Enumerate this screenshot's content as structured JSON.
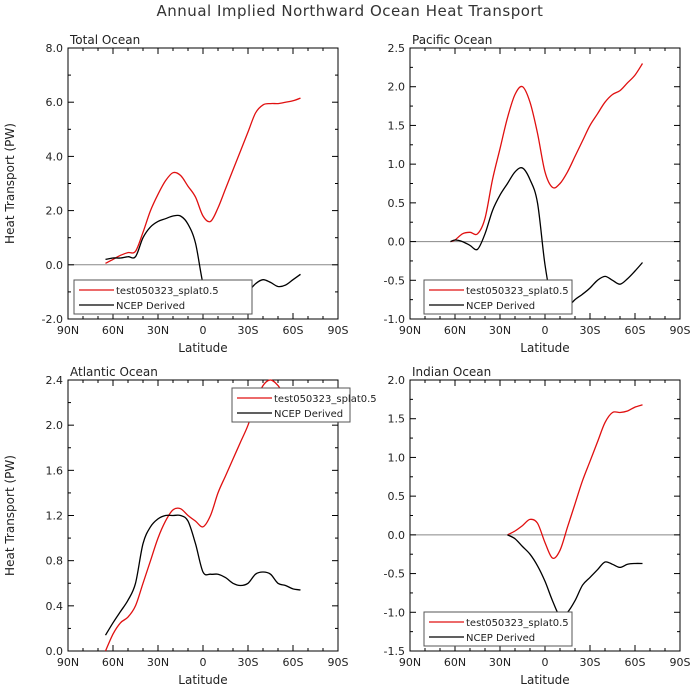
{
  "title": "Annual Implied Northward Ocean Heat Transport",
  "colors": {
    "model": "#e01010",
    "ncep": "#000000",
    "zero_line": "#888888"
  },
  "legend": [
    "test050323_splat0.5",
    "NCEP Derived"
  ],
  "chart_data": [
    {
      "type": "line",
      "title": "Total Ocean",
      "xlabel": "Latitude",
      "ylabel": "Heat Transport (PW)",
      "xlim": [
        90,
        -90
      ],
      "ylim": [
        -2.0,
        8.0
      ],
      "x_ticks": [
        90,
        60,
        30,
        0,
        -30,
        -60,
        -90
      ],
      "x_tick_labels": [
        "90N",
        "60N",
        "30N",
        "0",
        "30S",
        "60S",
        "90S"
      ],
      "y_ticks": [
        -2.0,
        0.0,
        2.0,
        4.0,
        6.0,
        8.0
      ],
      "y_tick_labels": [
        "-2.0",
        "0.0",
        "2.0",
        "4.0",
        "6.0",
        "8.0"
      ],
      "zero_line": true,
      "legend_position": "bottom-left",
      "series": [
        {
          "name": "test050323_splat0.5",
          "x": [
            65,
            60,
            55,
            50,
            45,
            40,
            35,
            30,
            25,
            20,
            15,
            10,
            5,
            0,
            -5,
            -10,
            -15,
            -20,
            -25,
            -30,
            -35,
            -40,
            -45,
            -50,
            -55,
            -60,
            -65
          ],
          "y": [
            0.05,
            0.2,
            0.35,
            0.45,
            0.5,
            1.2,
            2.0,
            2.6,
            3.1,
            3.4,
            3.3,
            2.9,
            2.5,
            1.8,
            1.6,
            2.1,
            2.8,
            3.5,
            4.2,
            4.9,
            5.6,
            5.9,
            5.95,
            5.95,
            6.0,
            6.05,
            6.15
          ]
        },
        {
          "name": "NCEP Derived",
          "x": [
            65,
            60,
            55,
            50,
            45,
            40,
            35,
            30,
            25,
            20,
            15,
            10,
            5,
            0,
            -5,
            -10,
            -15,
            -20,
            -25,
            -30,
            -35,
            -40,
            -45,
            -50,
            -55,
            -60,
            -65
          ],
          "y": [
            0.2,
            0.25,
            0.25,
            0.3,
            0.3,
            1.0,
            1.4,
            1.6,
            1.7,
            1.8,
            1.8,
            1.5,
            0.8,
            -0.7,
            -1.5,
            -1.65,
            -1.6,
            -1.5,
            -1.2,
            -1.0,
            -0.7,
            -0.55,
            -0.65,
            -0.8,
            -0.75,
            -0.55,
            -0.35
          ]
        }
      ]
    },
    {
      "type": "line",
      "title": "Pacific Ocean",
      "xlabel": "Latitude",
      "ylabel": "",
      "xlim": [
        90,
        -90
      ],
      "ylim": [
        -1.0,
        2.5
      ],
      "x_ticks": [
        90,
        60,
        30,
        0,
        -30,
        -60,
        -90
      ],
      "x_tick_labels": [
        "90N",
        "60N",
        "30N",
        "0",
        "30S",
        "60S",
        "90S"
      ],
      "y_ticks": [
        -1.0,
        -0.5,
        0.0,
        0.5,
        1.0,
        1.5,
        2.0,
        2.5
      ],
      "y_tick_labels": [
        "-1.0",
        "-0.5",
        "0.0",
        "0.5",
        "1.0",
        "1.5",
        "2.0",
        "2.5"
      ],
      "zero_line": true,
      "legend_position": "bottom-left",
      "series": [
        {
          "name": "test050323_splat0.5",
          "x": [
            63,
            60,
            55,
            50,
            45,
            40,
            35,
            30,
            25,
            20,
            15,
            10,
            5,
            0,
            -5,
            -10,
            -15,
            -20,
            -25,
            -30,
            -35,
            -40,
            -45,
            -50,
            -55,
            -60,
            -65
          ],
          "y": [
            0.0,
            0.02,
            0.1,
            0.12,
            0.1,
            0.3,
            0.8,
            1.2,
            1.6,
            1.9,
            2.0,
            1.8,
            1.4,
            0.9,
            0.7,
            0.75,
            0.9,
            1.1,
            1.3,
            1.5,
            1.65,
            1.8,
            1.9,
            1.95,
            2.05,
            2.15,
            2.3
          ]
        },
        {
          "name": "NCEP Derived",
          "x": [
            63,
            60,
            55,
            50,
            45,
            40,
            35,
            30,
            25,
            20,
            15,
            10,
            5,
            0,
            -5,
            -10,
            -15,
            -20,
            -25,
            -30,
            -35,
            -40,
            -45,
            -50,
            -55,
            -60,
            -65
          ],
          "y": [
            0.0,
            0.02,
            0.0,
            -0.05,
            -0.1,
            0.1,
            0.4,
            0.6,
            0.75,
            0.9,
            0.95,
            0.8,
            0.5,
            -0.3,
            -0.8,
            -0.9,
            -0.85,
            -0.75,
            -0.68,
            -0.6,
            -0.5,
            -0.45,
            -0.5,
            -0.55,
            -0.48,
            -0.38,
            -0.27
          ]
        }
      ]
    },
    {
      "type": "line",
      "title": "Atlantic Ocean",
      "xlabel": "Latitude",
      "ylabel": "Heat Transport (PW)",
      "xlim": [
        90,
        -90
      ],
      "ylim": [
        0.0,
        2.4
      ],
      "x_ticks": [
        90,
        60,
        30,
        0,
        -30,
        -60,
        -90
      ],
      "x_tick_labels": [
        "90N",
        "60N",
        "30N",
        "0",
        "30S",
        "60S",
        "90S"
      ],
      "y_ticks": [
        0.0,
        0.4,
        0.8,
        1.2,
        1.6,
        2.0,
        2.4
      ],
      "y_tick_labels": [
        "0.0",
        "0.4",
        "0.8",
        "1.2",
        "1.6",
        "2.0",
        "2.4"
      ],
      "zero_line": false,
      "legend_position": "top-right",
      "series": [
        {
          "name": "test050323_splat0.5",
          "x": [
            65,
            60,
            55,
            50,
            45,
            40,
            35,
            30,
            25,
            20,
            15,
            10,
            5,
            0,
            -5,
            -10,
            -15,
            -20,
            -25,
            -30,
            -35,
            -40,
            -45,
            -50,
            -55,
            -60,
            -65
          ],
          "y": [
            0.0,
            0.15,
            0.25,
            0.3,
            0.4,
            0.6,
            0.8,
            1.0,
            1.15,
            1.25,
            1.26,
            1.2,
            1.15,
            1.1,
            1.2,
            1.4,
            1.55,
            1.7,
            1.85,
            2.0,
            2.2,
            2.35,
            2.4,
            2.35,
            2.25,
            2.2,
            2.2
          ]
        },
        {
          "name": "NCEP Derived",
          "x": [
            65,
            60,
            55,
            50,
            45,
            40,
            35,
            30,
            25,
            20,
            15,
            10,
            5,
            0,
            -5,
            -10,
            -15,
            -20,
            -25,
            -30,
            -35,
            -40,
            -45,
            -50,
            -55,
            -60,
            -65
          ],
          "y": [
            0.14,
            0.25,
            0.35,
            0.45,
            0.6,
            0.95,
            1.1,
            1.17,
            1.2,
            1.2,
            1.2,
            1.15,
            0.95,
            0.7,
            0.68,
            0.68,
            0.65,
            0.6,
            0.58,
            0.6,
            0.68,
            0.7,
            0.68,
            0.6,
            0.58,
            0.55,
            0.54
          ]
        }
      ]
    },
    {
      "type": "line",
      "title": "Indian Ocean",
      "xlabel": "Latitude",
      "ylabel": "",
      "xlim": [
        90,
        -90
      ],
      "ylim": [
        -1.5,
        2.0
      ],
      "x_ticks": [
        90,
        60,
        30,
        0,
        -30,
        -60,
        -90
      ],
      "x_tick_labels": [
        "90N",
        "60N",
        "30N",
        "0",
        "30S",
        "60S",
        "90S"
      ],
      "y_ticks": [
        -1.5,
        -1.0,
        -0.5,
        0.0,
        0.5,
        1.0,
        1.5,
        2.0
      ],
      "y_tick_labels": [
        "-1.5",
        "-1.0",
        "-0.5",
        "0.0",
        "0.5",
        "1.0",
        "1.5",
        "2.0"
      ],
      "zero_line": true,
      "legend_position": "bottom-left",
      "series": [
        {
          "name": "test050323_splat0.5",
          "x": [
            25,
            20,
            15,
            10,
            5,
            0,
            -5,
            -10,
            -15,
            -20,
            -25,
            -30,
            -35,
            -40,
            -45,
            -50,
            -55,
            -60,
            -65
          ],
          "y": [
            0.0,
            0.05,
            0.12,
            0.2,
            0.15,
            -0.1,
            -0.3,
            -0.2,
            0.1,
            0.4,
            0.7,
            0.95,
            1.2,
            1.45,
            1.58,
            1.58,
            1.6,
            1.65,
            1.68
          ]
        },
        {
          "name": "NCEP Derived",
          "x": [
            25,
            20,
            15,
            10,
            5,
            0,
            -5,
            -10,
            -15,
            -20,
            -25,
            -30,
            -35,
            -40,
            -45,
            -50,
            -55,
            -60,
            -65
          ],
          "y": [
            0.0,
            -0.05,
            -0.15,
            -0.25,
            -0.4,
            -0.6,
            -0.85,
            -1.05,
            -1.0,
            -0.85,
            -0.65,
            -0.55,
            -0.45,
            -0.35,
            -0.38,
            -0.42,
            -0.38,
            -0.37,
            -0.37
          ]
        }
      ]
    }
  ]
}
